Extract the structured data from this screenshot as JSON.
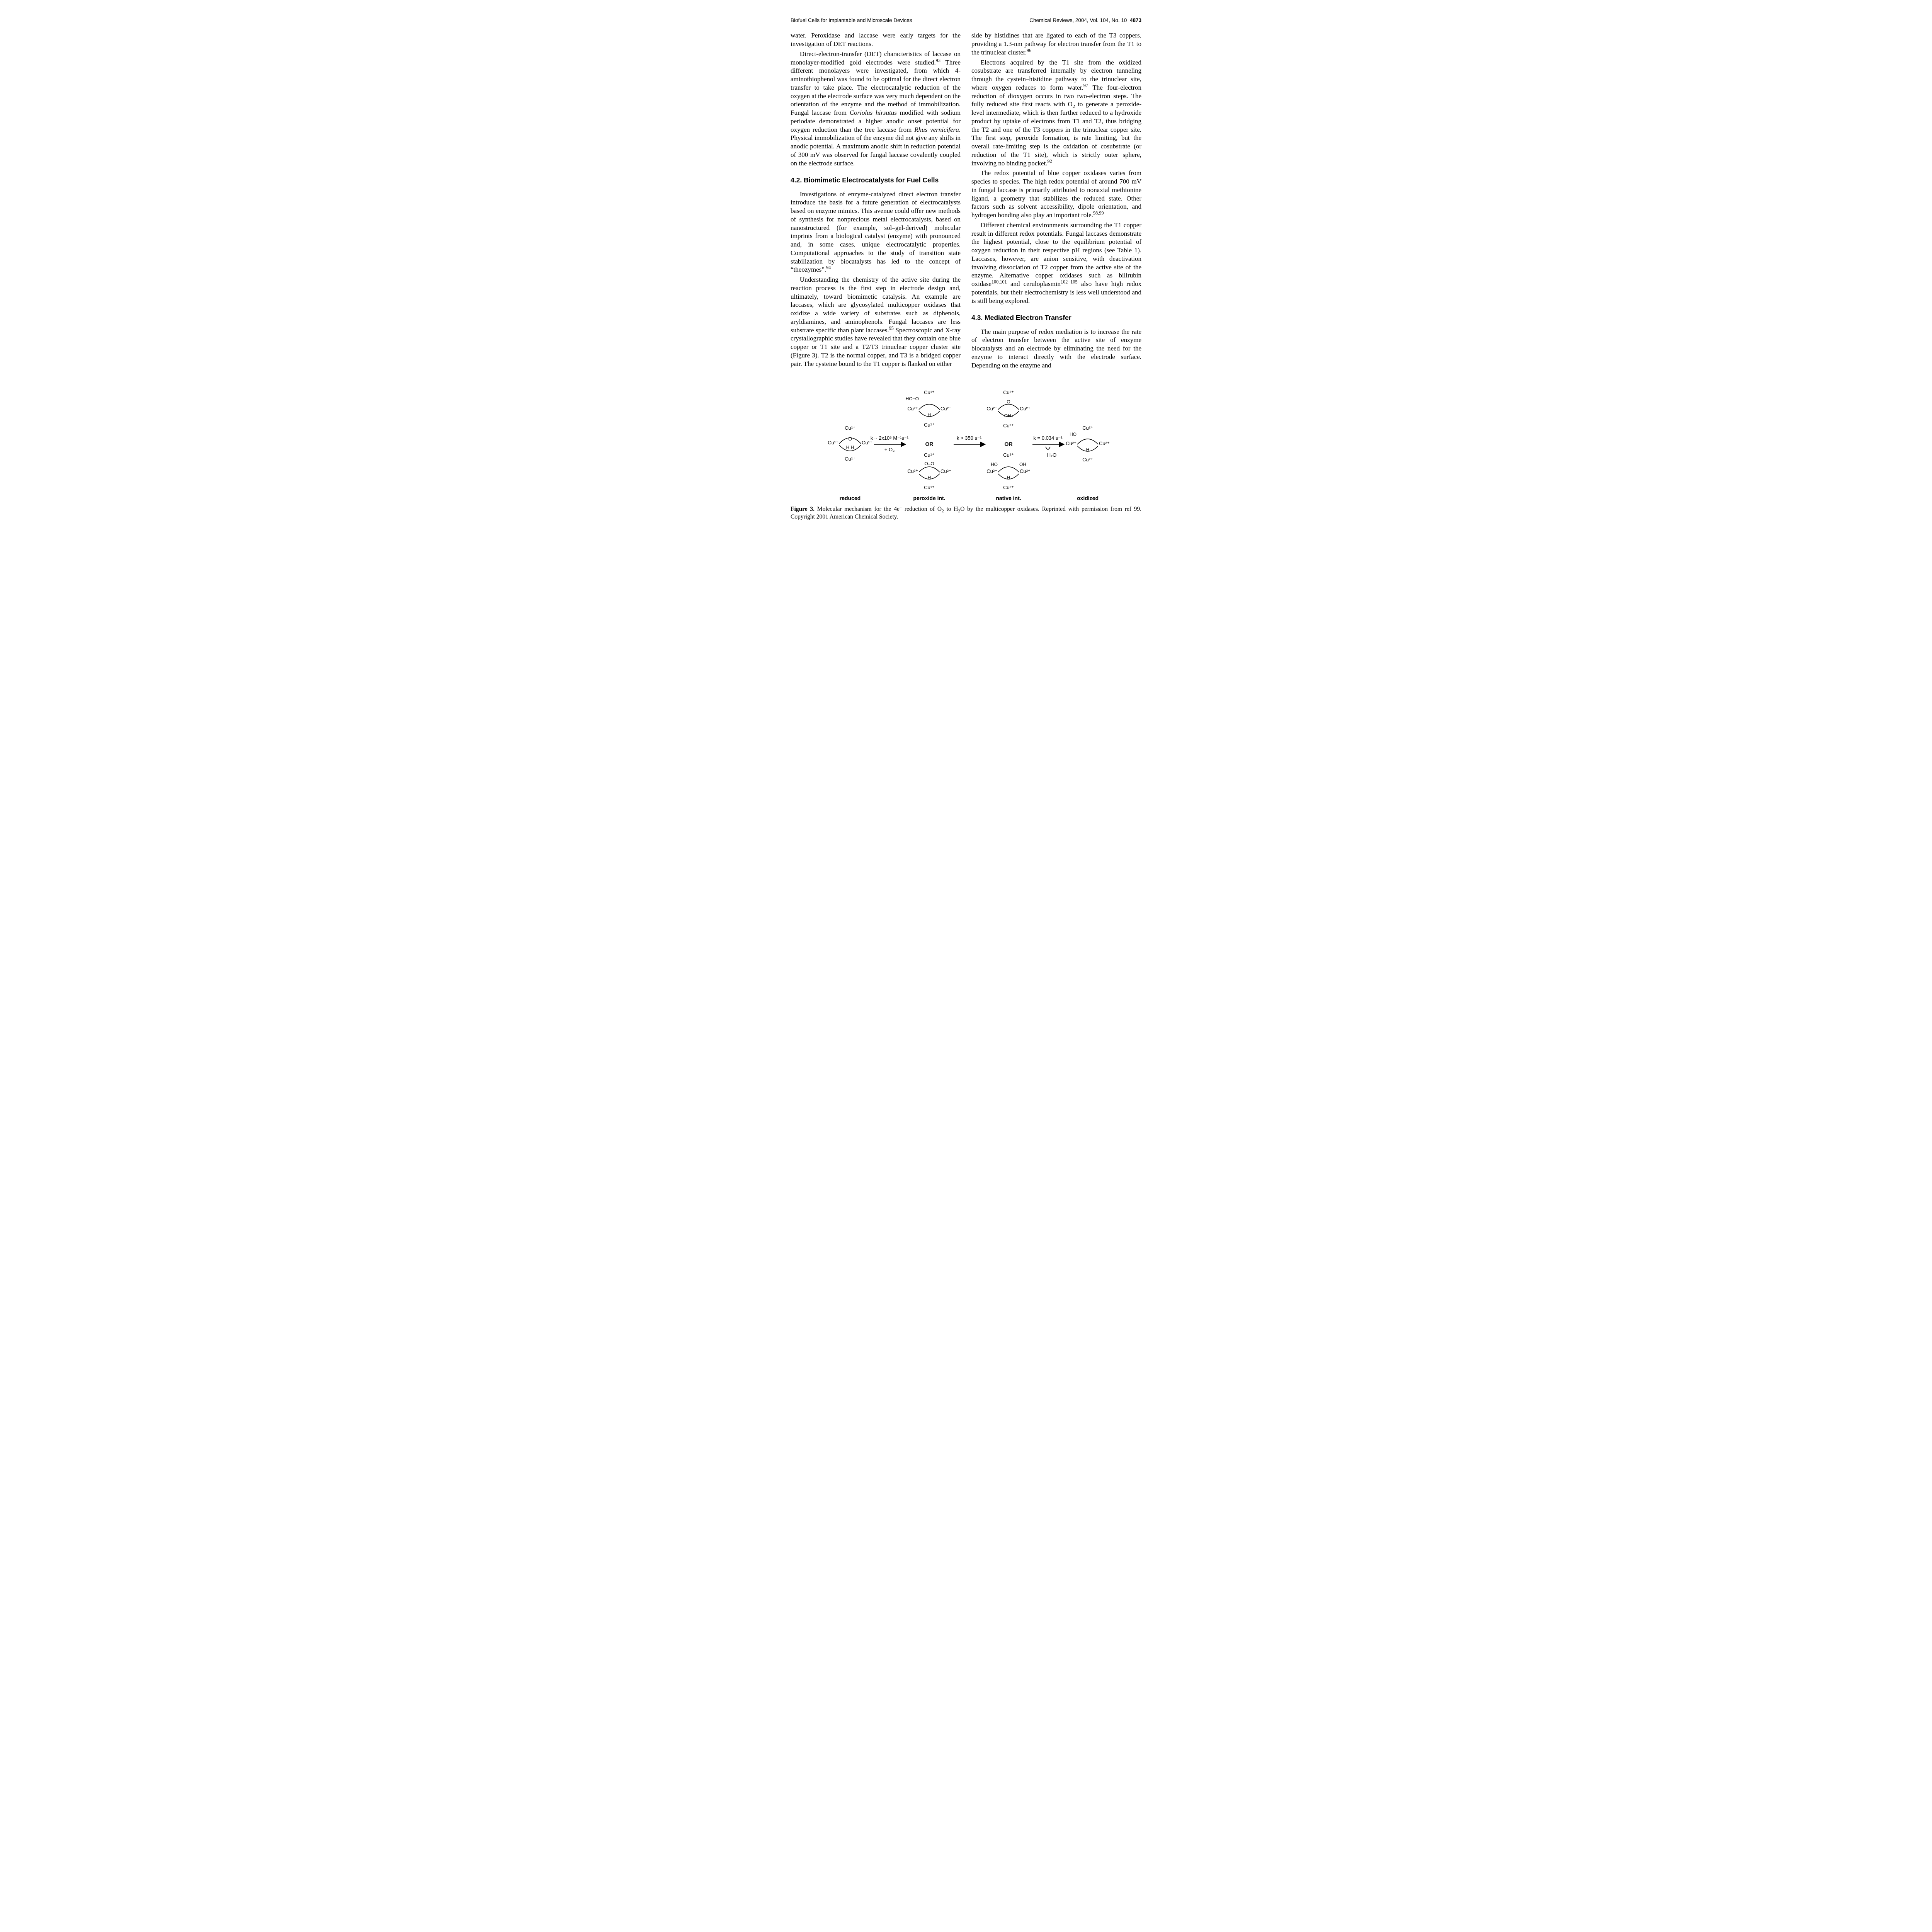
{
  "runningHead": {
    "left": "Biofuel Cells for Implantable and Microscale Devices",
    "rightPrefix": "Chemical Reviews, 2004, Vol. 104, No. 10",
    "pageNum": "4873"
  },
  "sections": {
    "s42": "4.2. Biomimetic Electrocatalysts for Fuel Cells",
    "s43": "4.3. Mediated Electron Transfer"
  },
  "paragraphs": {
    "p1a": "water. Peroxidase and laccase were early targets for the investigation of DET reactions.",
    "p2_html": "Direct-electron-transfer (DET) characteristics of laccase on monolayer-modified gold electrodes were studied.<sup>93</sup> Three different monolayers were investigated, from which 4-aminothiophenol was found to be optimal for the direct electron transfer to take place. The electrocatalytic reduction of the oxygen at the electrode surface was very much dependent on the orientation of the enzyme and the method of immobilization. Fungal laccase from <i>Coriolus hirsutus</i> modified with sodium periodate demonstrated a higher anodic onset potential for oxygen reduction than the tree laccase from <i>Rhus vernicifera</i>. Physical immobilization of the enzyme did not give any shifts in anodic potential. A maximum anodic shift in reduction potential of 300 mV was observed for fungal laccase covalently coupled on the electrode surface.",
    "p3_html": "Investigations of enzyme-catalyzed direct electron transfer introduce the basis for a future generation of electrocatalysts based on enzyme mimics. This avenue could offer new methods of synthesis for nonprecious metal electrocatalysts, based on nanostructured (for example, sol–gel-derived) molecular imprints from a biological catalyst (enzyme) with pronounced and, in some cases, unique electrocatalytic properties. Computational approaches to the study of transition state stabilization by biocatalysts has led to the concept of “theozymes”.<sup>94</sup>",
    "p4_html": "Understanding the chemistry of the active site during the reaction process is the first step in electrode design and, ultimately, toward biomimetic catalysis. An example are laccases, which are glycosylated multicopper oxidases that oxidize a wide variety of substrates such as diphenols, aryldiamines, and aminophenols. Fungal laccases are less substrate specific than plant laccases.<sup>95</sup> Spectroscopic and X-ray crystallographic studies have revealed that they contain one blue copper or T1 site and a T2/T3 trinuclear copper cluster site (Figure 3). T2 is the normal copper, and T3 is a bridged copper pair. The cysteine bound to the T1 copper is flanked on either",
    "p5_html": "side by histidines that are ligated to each of the T3 coppers, providing a 1.3-nm pathway for electron transfer from the T1 to the trinuclear cluster.<sup>96</sup>",
    "p6_html": "Electrons acquired by the T1 site from the oxidized cosubstrate are transferred internally by electron tunneling through the cystein–histidine pathway to the trinuclear site, where oxygen reduces to form water.<sup>97</sup> The four-electron reduction of dioxygen occurs in two two-electron steps. The fully reduced site first reacts with O<sub>2</sub> to generate a peroxide-level intermediate, which is then further reduced to a hydroxide product by uptake of electrons from T1 and T2, thus bridging the T2 and one of the T3 coppers in the trinuclear copper site. The first step, peroxide formation, is rate limiting, but the overall rate-limiting step is the oxidation of cosubstrate (or reduction of the T1 site), which is strictly outer sphere, involving no binding pocket.<sup>92</sup>",
    "p7_html": "The redox potential of blue copper oxidases varies from species to species. The high redox potential of around 700 mV in fungal laccase is primarily attributed to nonaxial methionine ligand, a geometry that stabilizes the reduced state. Other factors such as solvent accessibility, dipole orientation, and hydrogen bonding also play an important role.<sup>98,99</sup>",
    "p8_html": "Different chemical environments surrounding the T1 copper result in different redox potentials. Fungal laccases demonstrate the highest potential, close to the equilibrium potential of oxygen reduction in their respective pH regions (see Table 1). Laccases, however, are anion sensitive, with deactivation involving dissociation of T2 copper from the active site of the enzyme. Alternative copper oxidases such as bilirubin oxidase<sup>100,101</sup> and ceruloplasmin<sup>102−105</sup> also have high redox potentials, but their electrochemistry is less well understood and is still being explored.",
    "p9_html": "The main purpose of redox mediation is to increase the rate of electron transfer between the active site of enzyme biocatalysts and an electrode by eliminating the need for the enzyme to interact directly with the electrode surface. Depending on the enzyme and"
  },
  "figure": {
    "caption_html": "<b>Figure 3.</b> Molecular mechanism for the 4e<sup>−</sup> reduction of O<sub>2</sub> to H<sub>2</sub>O by the multicopper oxidases. Reprinted with permission from ref 99. Copyright 2001 American Chemical Society.",
    "type": "reaction-scheme",
    "stage_labels": [
      "reduced",
      "peroxide int.",
      "native int.",
      "oxidized"
    ],
    "arrow_texts": {
      "a1_top": "k ~ 2x10⁶ M⁻¹s⁻¹",
      "a1_bot": "+ O₂",
      "a2": "k > 350 s⁻¹",
      "a3": "k = 0.034 s⁻¹",
      "a3_prod": "H₂O"
    },
    "stages": {
      "reduced": {
        "top": "Cu¹⁺",
        "center": [
          "Cu¹⁺",
          "Cu¹⁺"
        ],
        "bridge": "H H",
        "bottom": "Cu¹⁺",
        "sideO": "O"
      },
      "peroxide": {
        "upper": {
          "top": "Cu¹⁺",
          "center": [
            "Cu²⁺",
            "Cu²⁺"
          ],
          "bridge": "H",
          "bottom": "Cu¹⁺",
          "extraO": "HO−O"
        },
        "mid": "OR",
        "lower": {
          "top": "Cu¹⁺",
          "center": [
            "Cu²⁺",
            "Cu²⁺"
          ],
          "bridge": "H",
          "bottom": "Cu¹⁺",
          "extraO": "O–O"
        }
      },
      "native": {
        "upper": {
          "top": "Cu²⁺",
          "center": [
            "Cu²⁺",
            "Cu²⁺"
          ],
          "bridge": "OHₙ",
          "bottom": "Cu²⁺",
          "sideO": "O"
        },
        "mid": "OR",
        "lower": {
          "top": "Cu²⁺",
          "center": [
            "Cu²⁺",
            "Cu²⁺"
          ],
          "bridge": "H",
          "bottom": "Cu²⁺",
          "sideHO": "HO",
          "sideOH": "OH"
        }
      },
      "oxidized": {
        "top": "Cu²⁺",
        "center": [
          "Cu²⁺",
          "Cu²⁺"
        ],
        "bridge": "H",
        "bottom": "Cu²⁺",
        "sideHO": "HO"
      }
    },
    "colors": {
      "stroke": "#000000",
      "text": "#000000",
      "bg": "#ffffff"
    },
    "stroke_width": 1.6,
    "font_family": "Arial, Helvetica, sans-serif",
    "font_size_label": 14,
    "font_size_chem": 13
  }
}
